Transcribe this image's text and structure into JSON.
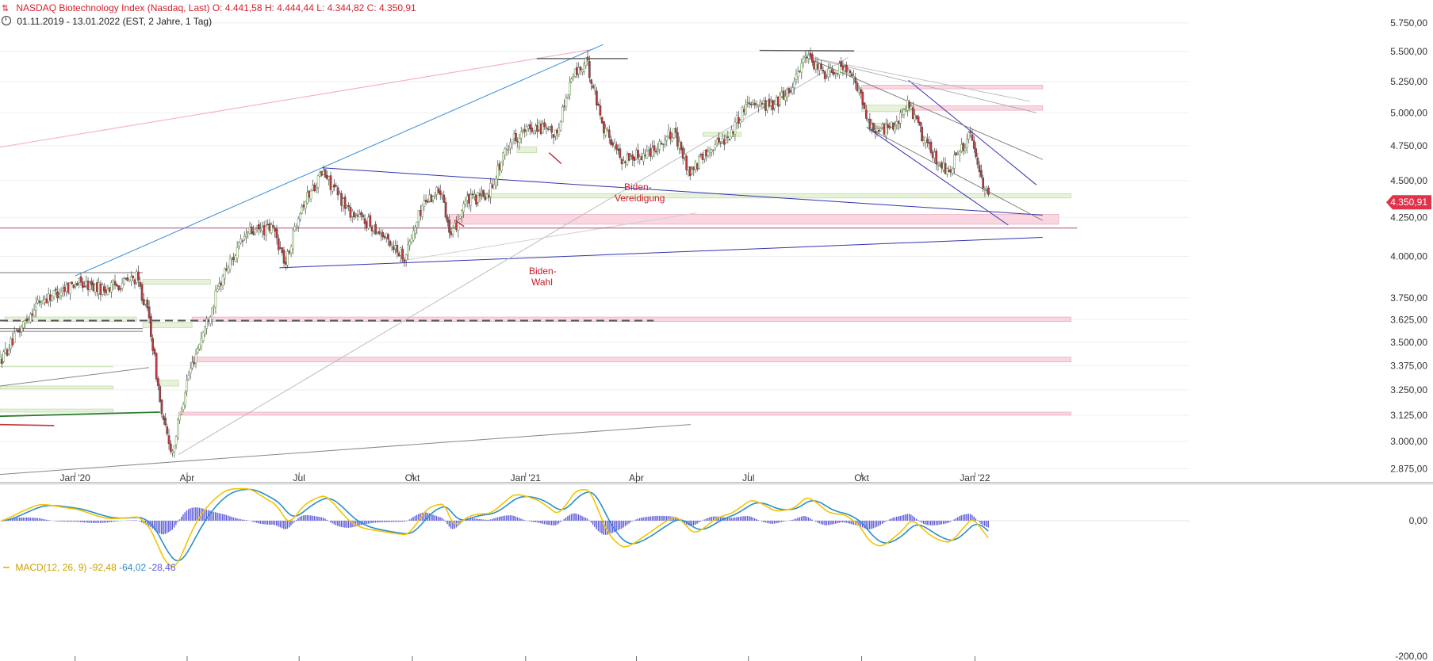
{
  "header": {
    "title": "NASDAQ Biotechnology Index (Nasdaq, Last)",
    "ohlc": "O: 4.441,58  H: 4.444,44  L: 4.344,82  C: 4.350,91",
    "period": "01.11.2019 - 13.01.2022  (EST, 2 Jahre, 1 Tag)"
  },
  "last_price_badge": "4.350,91",
  "macd_legend": {
    "label": "MACD(12, 26, 9)",
    "macd": "-92,48",
    "signal": "-64,02",
    "hist": "-28,46"
  },
  "colors": {
    "up": "#5b8c3a",
    "down": "#c8353c",
    "macd": "#f4c400",
    "signal": "#2b8fc8",
    "hist": "#5a58d6",
    "accent": "#e0334a"
  },
  "annotations": [
    {
      "text": "Biden-",
      "text2": "Wahl"
    },
    {
      "text": "Biden-",
      "text2": "Vereidigung"
    }
  ],
  "chart_data": [
    {
      "type": "candlestick",
      "title": "NASDAQ Biotechnology Index (Nasdaq, Last)",
      "y_ticks": [
        2875,
        3000,
        3125,
        3250,
        3375,
        3500,
        3625,
        3750,
        4000,
        4250,
        4500,
        4750,
        5000,
        5250,
        5500,
        5750
      ],
      "y_tick_labels": [
        "2.875,00",
        "3.000,00",
        "3.125,00",
        "3.250,00",
        "3.375,00",
        "3.500,00",
        "3.625,00",
        "3.750,00",
        "4.000,00",
        "4.250,00",
        "4.500,00",
        "4.750,00",
        "5.000,00",
        "5.250,00",
        "5.500,00",
        "5.750,00"
      ],
      "y_scale": "log",
      "ylim": [
        2820,
        5800
      ],
      "x_tick_labels": [
        "Jan '20",
        "Apr",
        "Jul",
        "Okt",
        "Jan '21",
        "Apr",
        "Jul",
        "Okt",
        "Jan '22"
      ],
      "x_range": [
        "2019-11-01",
        "2022-01-13"
      ],
      "price_path": [
        [
          "2019-11-01",
          3400
        ],
        [
          "2019-12-01",
          3720
        ],
        [
          "2020-01-01",
          3840
        ],
        [
          "2020-01-25",
          3800
        ],
        [
          "2020-02-20",
          3870
        ],
        [
          "2020-03-01",
          3640
        ],
        [
          "2020-03-12",
          3100
        ],
        [
          "2020-03-20",
          2950
        ],
        [
          "2020-04-01",
          3300
        ],
        [
          "2020-04-10",
          3480
        ],
        [
          "2020-05-01",
          3900
        ],
        [
          "2020-05-20",
          4150
        ],
        [
          "2020-06-10",
          4180
        ],
        [
          "2020-06-20",
          3950
        ],
        [
          "2020-07-01",
          4300
        ],
        [
          "2020-07-20",
          4560
        ],
        [
          "2020-08-10",
          4300
        ],
        [
          "2020-09-01",
          4180
        ],
        [
          "2020-09-25",
          4000
        ],
        [
          "2020-10-10",
          4350
        ],
        [
          "2020-10-25",
          4450
        ],
        [
          "2020-11-01",
          4100
        ],
        [
          "2020-11-12",
          4350
        ],
        [
          "2020-12-01",
          4400
        ],
        [
          "2020-12-20",
          4800
        ],
        [
          "2021-01-10",
          4900
        ],
        [
          "2021-01-25",
          4820
        ],
        [
          "2021-02-08",
          5300
        ],
        [
          "2021-02-20",
          5400
        ],
        [
          "2021-03-05",
          4900
        ],
        [
          "2021-03-20",
          4650
        ],
        [
          "2021-04-10",
          4700
        ],
        [
          "2021-05-01",
          4850
        ],
        [
          "2021-05-15",
          4550
        ],
        [
          "2021-06-01",
          4750
        ],
        [
          "2021-06-15",
          4820
        ],
        [
          "2021-07-01",
          5100
        ],
        [
          "2021-07-20",
          5050
        ],
        [
          "2021-08-05",
          5200
        ],
        [
          "2021-08-15",
          5450
        ],
        [
          "2021-09-01",
          5320
        ],
        [
          "2021-09-15",
          5380
        ],
        [
          "2021-09-28",
          5200
        ],
        [
          "2021-10-05",
          4950
        ],
        [
          "2021-10-15",
          4850
        ],
        [
          "2021-11-01",
          4950
        ],
        [
          "2021-11-08",
          5080
        ],
        [
          "2021-11-20",
          4800
        ],
        [
          "2021-12-01",
          4650
        ],
        [
          "2021-12-10",
          4560
        ],
        [
          "2021-12-20",
          4720
        ],
        [
          "2021-12-28",
          4820
        ],
        [
          "2022-01-05",
          4550
        ],
        [
          "2022-01-13",
          4350
        ]
      ]
    },
    {
      "type": "bar",
      "title": "MACD(12, 26, 9)",
      "series": [
        {
          "name": "MACD",
          "value": -92.48
        },
        {
          "name": "Signal",
          "value": -64.02
        },
        {
          "name": "Histogram",
          "value": -28.46
        }
      ],
      "y_tick_labels": [
        "0,00",
        "-200,00"
      ],
      "ylim": [
        -220,
        150
      ]
    }
  ]
}
